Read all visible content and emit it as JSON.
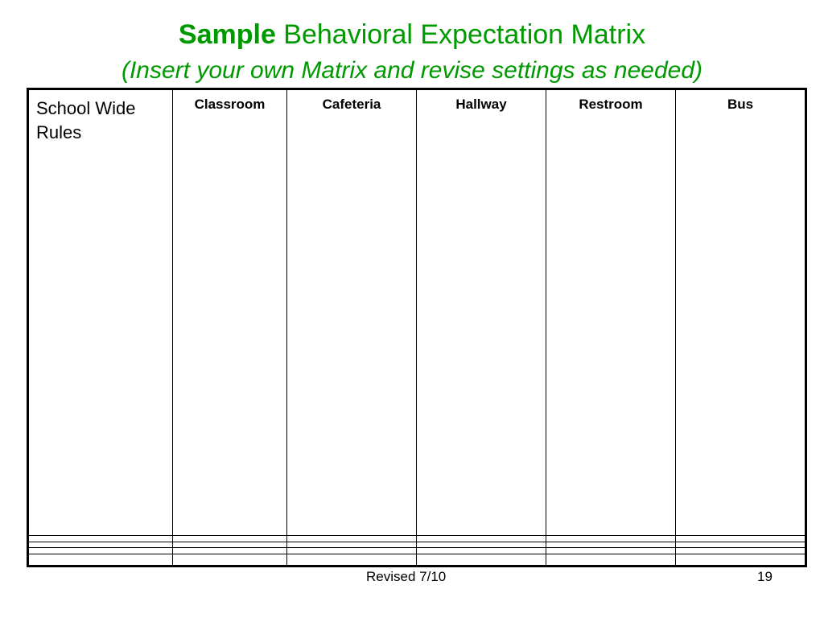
{
  "title": {
    "bold": "Sample",
    "rest": " Behavioral Expectation Matrix"
  },
  "subtitle": "(Insert your own Matrix and revise settings as needed)",
  "table": {
    "corner_header": "School Wide Rules",
    "columns": [
      "Classroom",
      "Cafeteria",
      "Hallway",
      "Restroom",
      "Bus"
    ],
    "rows": [
      [
        "",
        "",
        "",
        "",
        "",
        ""
      ],
      [
        "",
        "",
        "",
        "",
        "",
        ""
      ],
      [
        "",
        "",
        "",
        "",
        "",
        ""
      ],
      [
        "",
        "",
        "",
        "",
        "",
        ""
      ]
    ]
  },
  "footer": {
    "revised": "Revised 7/10",
    "page_number": "19"
  },
  "colors": {
    "title": "#009900"
  }
}
